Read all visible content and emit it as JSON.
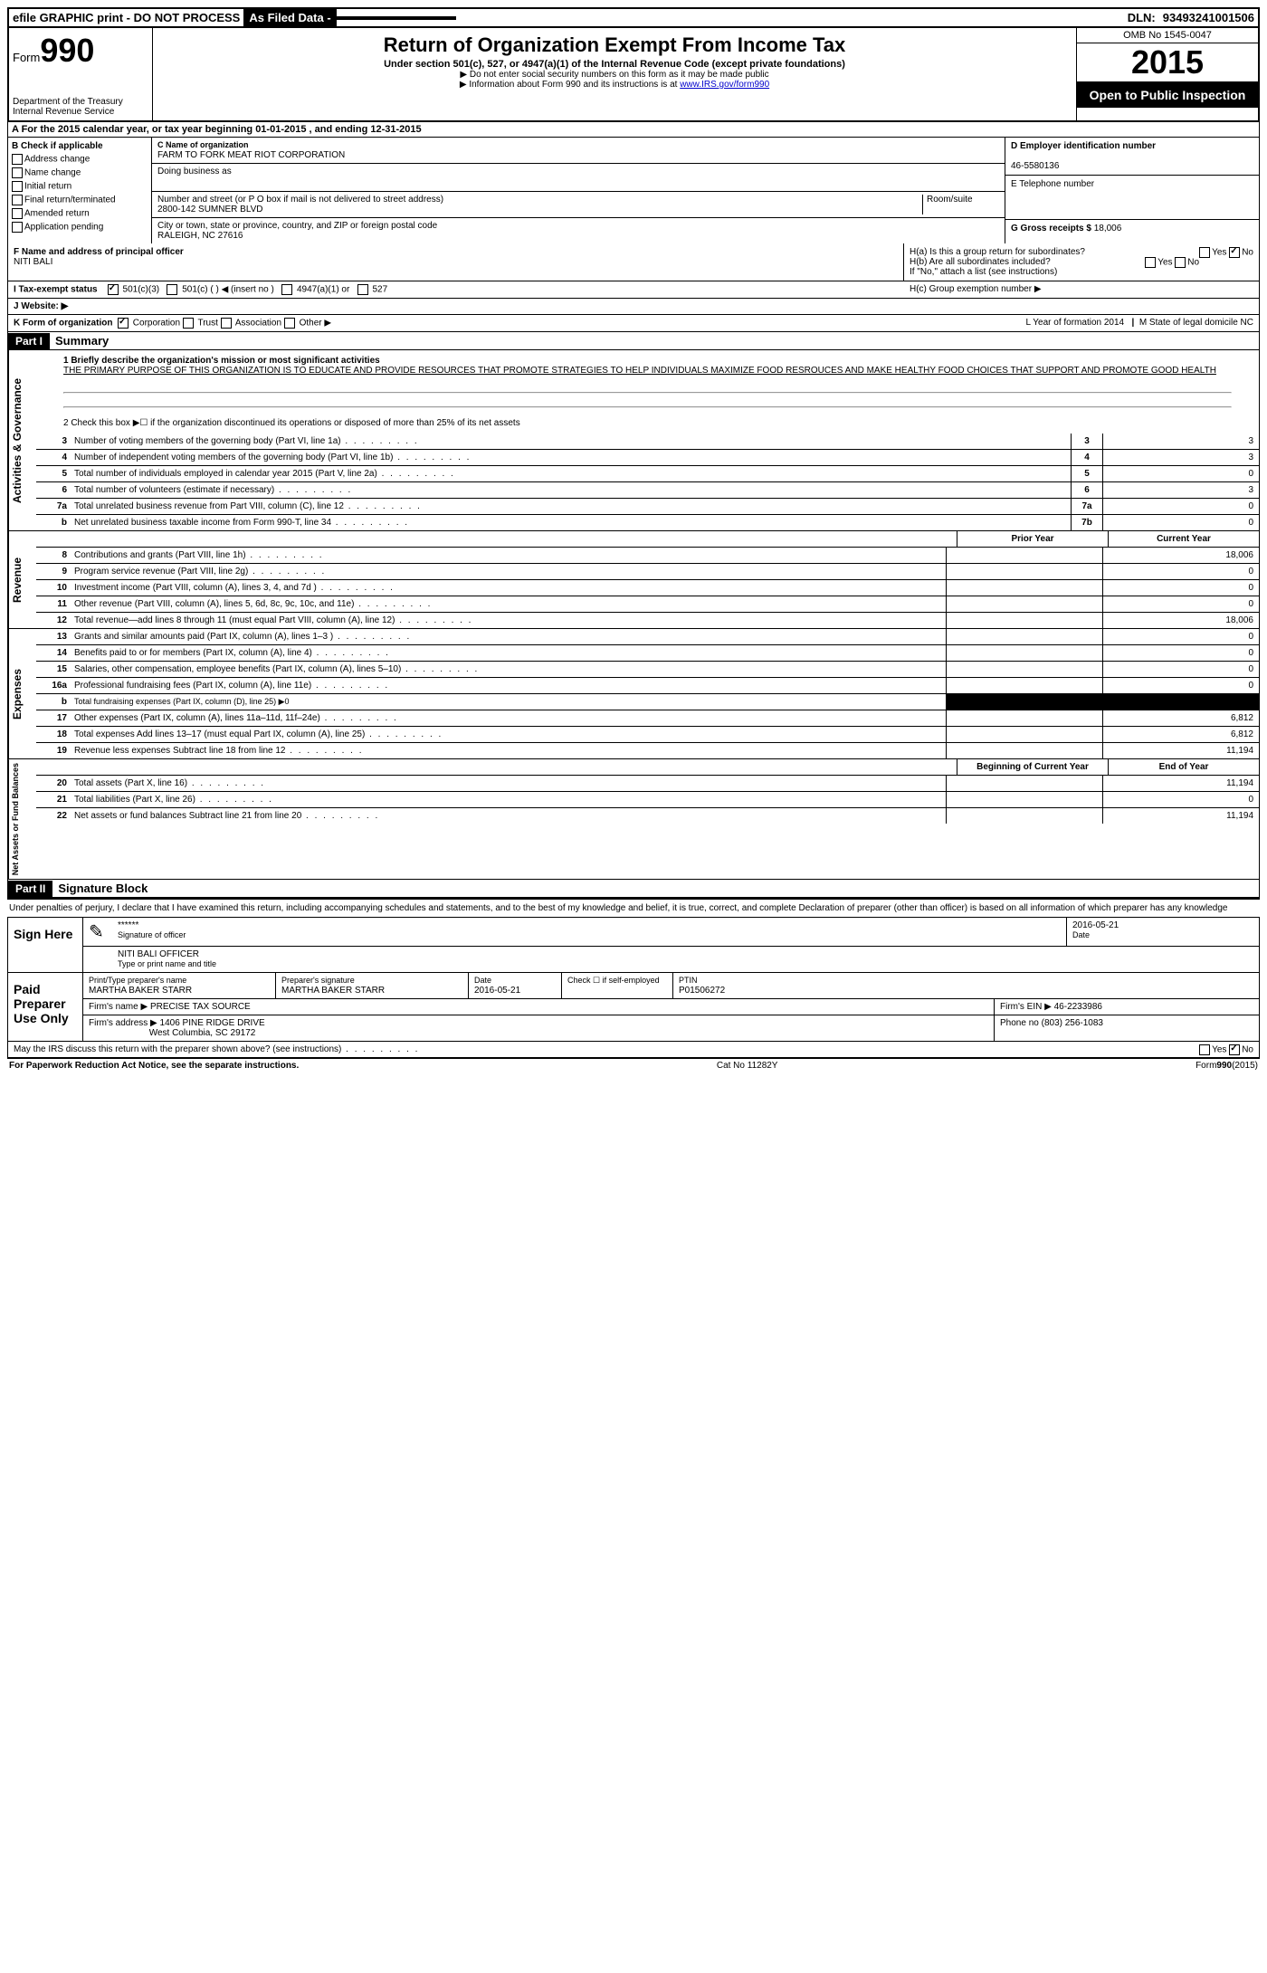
{
  "topbar": {
    "efile": "efile GRAPHIC print - DO NOT PROCESS",
    "asfiled": "As Filed Data -",
    "dln_label": "DLN:",
    "dln": "93493241001506"
  },
  "header": {
    "form_label": "Form",
    "form_num": "990",
    "dept1": "Department of the Treasury",
    "dept2": "Internal Revenue Service",
    "title": "Return of Organization Exempt From Income Tax",
    "subtitle": "Under section 501(c), 527, or 4947(a)(1) of the Internal Revenue Code (except private foundations)",
    "note1": "▶ Do not enter social security numbers on this form as it may be made public",
    "note2": "▶ Information about Form 990 and its instructions is at ",
    "note2_link": "www.IRS.gov/form990",
    "omb": "OMB No 1545-0047",
    "year": "2015",
    "open": "Open to Public Inspection"
  },
  "rowA": "A  For the 2015 calendar year, or tax year beginning 01-01-2015    , and ending 12-31-2015",
  "B": {
    "label": "B  Check if applicable",
    "items": [
      "Address change",
      "Name change",
      "Initial return",
      "Final return/terminated",
      "Amended return",
      "Application pending"
    ]
  },
  "C": {
    "name_lbl": "C Name of organization",
    "name": "FARM TO FORK MEAT RIOT CORPORATION",
    "dba_lbl": "Doing business as",
    "dba": "",
    "addr_lbl": "Number and street (or P O  box if mail is not delivered to street address)",
    "room_lbl": "Room/suite",
    "addr": "2800-142 SUMNER BLVD",
    "city_lbl": "City or town, state or province, country, and ZIP or foreign postal code",
    "city": "RALEIGH, NC  27616"
  },
  "D": {
    "ein_lbl": "D Employer identification number",
    "ein": "46-5580136",
    "tel_lbl": "E Telephone number",
    "tel": "",
    "gross_lbl": "G Gross receipts $",
    "gross": "18,006"
  },
  "F": {
    "lbl": "F  Name and address of principal officer",
    "name": "NITI BALI"
  },
  "H": {
    "a": "H(a)  Is this a group return for subordinates?",
    "b": "H(b)  Are all subordinates included?",
    "note": "If \"No,\" attach a list  (see instructions)",
    "c": "H(c)  Group exemption number ▶",
    "yes": "Yes",
    "no": "No"
  },
  "I": {
    "lbl": "I  Tax-exempt status",
    "opts": [
      "501(c)(3)",
      "501(c) (  ) ◀ (insert no )",
      "4947(a)(1) or",
      "527"
    ]
  },
  "J": {
    "lbl": "J  Website: ▶"
  },
  "K": {
    "lbl": "K Form of organization",
    "opts": [
      "Corporation",
      "Trust",
      "Association",
      "Other ▶"
    ],
    "L": "L Year of formation  2014",
    "M": "M State of legal domicile  NC"
  },
  "part1": {
    "hdr": "Part I",
    "title": "Summary",
    "line1_lbl": "1 Briefly describe the organization's mission or most significant activities",
    "mission": "THE PRIMARY PURPOSE OF THIS ORGANIZATION IS TO EDUCATE AND PROVIDE RESOURCES THAT PROMOTE STRATEGIES TO HELP INDIVIDUALS MAXIMIZE FOOD RESROUCES AND MAKE HEALTHY FOOD CHOICES THAT SUPPORT AND PROMOTE GOOD HEALTH",
    "line2": "2  Check this box ▶☐ if the organization discontinued its operations or disposed of more than 25% of its net assets",
    "gov_lines": [
      {
        "n": "3",
        "t": "Number of voting members of the governing body (Part VI, line 1a)",
        "b": "3",
        "v": "3"
      },
      {
        "n": "4",
        "t": "Number of independent voting members of the governing body (Part VI, line 1b)",
        "b": "4",
        "v": "3"
      },
      {
        "n": "5",
        "t": "Total number of individuals employed in calendar year 2015 (Part V, line 2a)",
        "b": "5",
        "v": "0"
      },
      {
        "n": "6",
        "t": "Total number of volunteers (estimate if necessary)",
        "b": "6",
        "v": "3"
      },
      {
        "n": "7a",
        "t": "Total unrelated business revenue from Part VIII, column (C), line 12",
        "b": "7a",
        "v": "0"
      },
      {
        "n": "b",
        "t": "Net unrelated business taxable income from Form 990-T, line 34",
        "b": "7b",
        "v": "0"
      }
    ],
    "py": "Prior Year",
    "cy": "Current Year",
    "rev_lines": [
      {
        "n": "8",
        "t": "Contributions and grants (Part VIII, line 1h)",
        "p": "",
        "c": "18,006"
      },
      {
        "n": "9",
        "t": "Program service revenue (Part VIII, line 2g)",
        "p": "",
        "c": "0"
      },
      {
        "n": "10",
        "t": "Investment income (Part VIII, column (A), lines 3, 4, and 7d )",
        "p": "",
        "c": "0"
      },
      {
        "n": "11",
        "t": "Other revenue (Part VIII, column (A), lines 5, 6d, 8c, 9c, 10c, and 11e)",
        "p": "",
        "c": "0"
      },
      {
        "n": "12",
        "t": "Total revenue—add lines 8 through 11 (must equal Part VIII, column (A), line 12)",
        "p": "",
        "c": "18,006"
      }
    ],
    "exp_lines": [
      {
        "n": "13",
        "t": "Grants and similar amounts paid (Part IX, column (A), lines 1–3 )",
        "p": "",
        "c": "0"
      },
      {
        "n": "14",
        "t": "Benefits paid to or for members (Part IX, column (A), line 4)",
        "p": "",
        "c": "0"
      },
      {
        "n": "15",
        "t": "Salaries, other compensation, employee benefits (Part IX, column (A), lines 5–10)",
        "p": "",
        "c": "0"
      },
      {
        "n": "16a",
        "t": "Professional fundraising fees (Part IX, column (A), line 11e)",
        "p": "",
        "c": "0"
      },
      {
        "n": "b",
        "t": "Total fundraising expenses (Part IX, column (D), line 25) ▶0",
        "p": "BLACK",
        "c": "BLACK",
        "small": true
      },
      {
        "n": "17",
        "t": "Other expenses (Part IX, column (A), lines 11a–11d, 11f–24e)",
        "p": "",
        "c": "6,812"
      },
      {
        "n": "18",
        "t": "Total expenses  Add lines 13–17 (must equal Part IX, column (A), line 25)",
        "p": "",
        "c": "6,812"
      },
      {
        "n": "19",
        "t": "Revenue less expenses  Subtract line 18 from line 12",
        "p": "",
        "c": "11,194"
      }
    ],
    "bcy": "Beginning of Current Year",
    "eoy": "End of Year",
    "na_lines": [
      {
        "n": "20",
        "t": "Total assets (Part X, line 16)",
        "p": "",
        "c": "11,194"
      },
      {
        "n": "21",
        "t": "Total liabilities (Part X, line 26)",
        "p": "",
        "c": "0"
      },
      {
        "n": "22",
        "t": "Net assets or fund balances  Subtract line 21 from line 20",
        "p": "",
        "c": "11,194"
      }
    ]
  },
  "vert": {
    "gov": "Activities & Governance",
    "rev": "Revenue",
    "exp": "Expenses",
    "na": "Net Assets or Fund Balances"
  },
  "part2": {
    "hdr": "Part II",
    "title": "Signature Block",
    "text": "Under penalties of perjury, I declare that I have examined this return, including accompanying schedules and statements, and to the best of my knowledge and belief, it is true, correct, and complete  Declaration of preparer (other than officer) is based on all information of which preparer has any knowledge",
    "sign_here": "Sign Here",
    "stars": "******",
    "sig_of": "Signature of officer",
    "date": "Date",
    "date_v": "2016-05-21",
    "officer": "NITI BALI OFFICER",
    "type_print": "Type or print name and title",
    "paid": "Paid Preparer Use Only",
    "prep_name_lbl": "Print/Type preparer's name",
    "prep_name": "MARTHA BAKER STARR",
    "prep_sig_lbl": "Preparer's signature",
    "prep_sig": "MARTHA BAKER STARR",
    "prep_date": "2016-05-21",
    "self_emp": "Check ☐ if self-employed",
    "ptin_lbl": "PTIN",
    "ptin": "P01506272",
    "firm_name_lbl": "Firm's name     ▶",
    "firm_name": "PRECISE TAX SOURCE",
    "firm_ein_lbl": "Firm's EIN ▶",
    "firm_ein": "46-2233986",
    "firm_addr_lbl": "Firm's address ▶",
    "firm_addr1": "1406 PINE RIDGE DRIVE",
    "firm_addr2": "West Columbia, SC  29172",
    "phone_lbl": "Phone no",
    "phone": "(803) 256-1083",
    "discuss": "May the IRS discuss this return with the preparer shown above? (see instructions)"
  },
  "footer": {
    "left": "For Paperwork Reduction Act Notice, see the separate instructions.",
    "mid": "Cat No 11282Y",
    "right": "Form990(2015)"
  }
}
